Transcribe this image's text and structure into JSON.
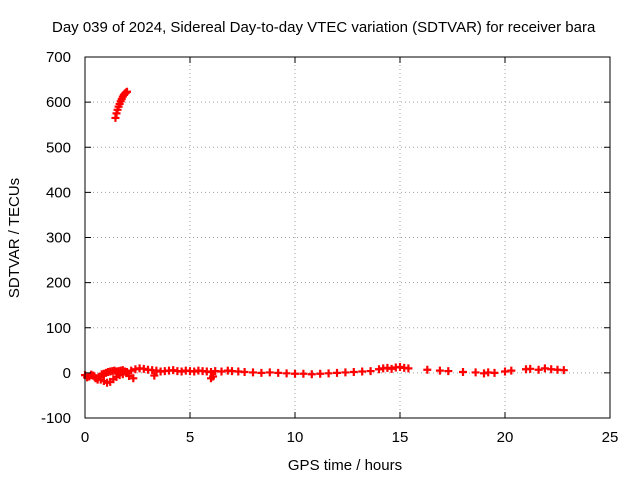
{
  "chart_data": {
    "type": "scatter",
    "title": "Day 039 of 2024, Sidereal Day-to-day VTEC variation (SDTVAR) for receiver bara",
    "xlabel": "GPS time / hours",
    "ylabel": "SDTVAR / TECUs",
    "xlim": [
      0,
      25
    ],
    "ylim": [
      -100,
      700
    ],
    "xticks": [
      0,
      5,
      10,
      15,
      20,
      25
    ],
    "yticks": [
      -100,
      0,
      100,
      200,
      300,
      400,
      500,
      600,
      700
    ],
    "grid": true,
    "marker": "plus",
    "color": "#ff0000",
    "series": [
      {
        "name": "early-high-segment",
        "x": [
          1.45,
          1.5,
          1.55,
          1.6,
          1.65,
          1.7,
          1.75,
          1.8,
          1.85,
          1.9,
          1.95,
          2.0
        ],
        "y": [
          565,
          575,
          583,
          590,
          596,
          602,
          607,
          612,
          616,
          619,
          621,
          623
        ]
      },
      {
        "name": "main-track",
        "x": [
          0.0,
          0.1,
          0.2,
          0.3,
          0.4,
          0.5,
          0.6,
          0.7,
          0.8,
          0.9,
          1.0,
          1.1,
          1.2,
          1.3,
          1.4,
          1.5,
          1.6,
          1.7,
          1.8,
          1.9,
          2.0,
          2.2,
          2.4,
          2.6,
          2.8,
          3.0,
          3.2,
          3.4,
          3.6,
          3.8,
          4.0,
          4.2,
          4.4,
          4.6,
          4.8,
          5.0,
          5.2,
          5.4,
          5.6,
          5.8,
          6.0,
          6.2,
          6.5,
          6.8,
          7.0,
          7.3,
          7.6,
          8.0,
          8.4,
          8.8,
          9.2,
          9.6,
          10.0,
          10.4,
          10.8,
          11.2,
          11.6,
          12.0,
          12.4,
          12.8,
          13.2,
          13.6,
          14.0,
          14.2,
          14.4,
          14.6,
          14.8,
          15.0,
          15.2,
          15.4,
          16.3,
          16.9,
          17.3,
          18.0,
          18.6,
          19.0,
          19.2,
          19.5,
          20.0,
          20.3,
          21.0,
          21.2,
          21.6,
          21.9,
          22.2,
          22.5,
          22.8
        ],
        "y": [
          -5,
          -10,
          -8,
          -4,
          -6,
          -12,
          -15,
          -8,
          -3,
          -2,
          0,
          2,
          3,
          4,
          5,
          3,
          4,
          5,
          6,
          3,
          2,
          5,
          8,
          10,
          9,
          7,
          6,
          5,
          3,
          4,
          5,
          6,
          4,
          3,
          5,
          4,
          3,
          5,
          4,
          3,
          2,
          4,
          3,
          5,
          4,
          3,
          2,
          1,
          0,
          1,
          0,
          -1,
          -2,
          -2,
          -3,
          -2,
          -1,
          0,
          1,
          2,
          3,
          4,
          8,
          10,
          11,
          9,
          12,
          13,
          11,
          10,
          7,
          5,
          4,
          2,
          1,
          -1,
          1,
          0,
          3,
          5,
          8,
          9,
          7,
          10,
          8,
          7,
          6
        ]
      },
      {
        "name": "dipping-branch",
        "x": [
          0.3,
          0.45,
          0.6,
          0.75,
          0.9,
          1.05,
          1.2,
          1.35,
          1.5,
          1.65,
          1.8,
          2.1,
          2.3,
          3.3,
          6.0,
          6.1
        ],
        "y": [
          -5,
          -8,
          -12,
          -15,
          -18,
          -22,
          -20,
          -14,
          -9,
          -5,
          -3,
          -7,
          -12,
          -6,
          -12,
          -8
        ]
      }
    ]
  }
}
